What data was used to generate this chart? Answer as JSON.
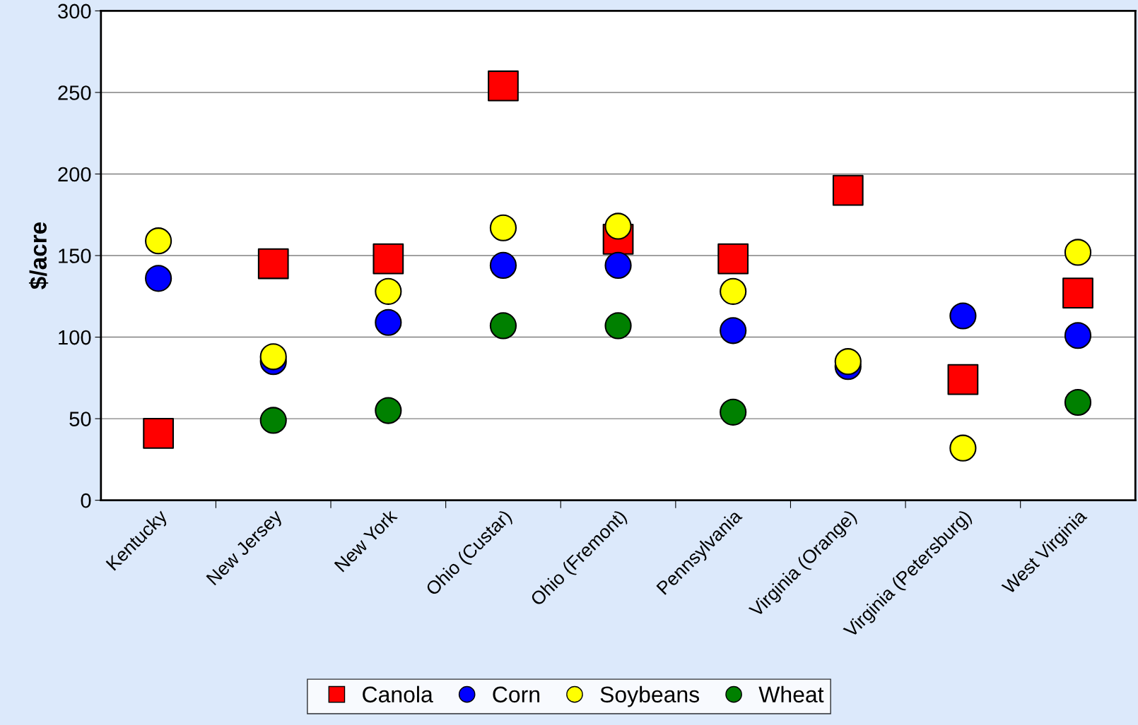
{
  "chart_data": {
    "type": "scatter",
    "ylabel": "$/acre",
    "categories": [
      "Kentucky",
      "New Jersey",
      "New York",
      "Ohio (Custar)",
      "Ohio (Fremont)",
      "Pennsylvania",
      "Virginia (Orange)",
      "Virginia (Petersburg)",
      "West Virginia"
    ],
    "series": [
      {
        "name": "Canola",
        "color": "#ff0000",
        "marker": "square",
        "values": [
          41,
          145,
          148,
          254,
          160,
          148,
          190,
          74,
          127
        ]
      },
      {
        "name": "Corn",
        "color": "#0000ff",
        "marker": "circle",
        "values": [
          136,
          85,
          109,
          144,
          144,
          104,
          82,
          113,
          101
        ]
      },
      {
        "name": "Soybeans",
        "color": "#ffff00",
        "marker": "circle",
        "values": [
          159,
          88,
          128,
          167,
          168,
          128,
          85,
          32,
          152
        ]
      },
      {
        "name": "Wheat",
        "color": "#008000",
        "marker": "circle",
        "values": [
          null,
          49,
          55,
          107,
          107,
          54,
          null,
          null,
          60
        ]
      }
    ],
    "ylim": [
      0,
      300
    ],
    "yticks": [
      0,
      50,
      100,
      150,
      200,
      250,
      300
    ],
    "grid": "y",
    "legend": "bottom"
  }
}
